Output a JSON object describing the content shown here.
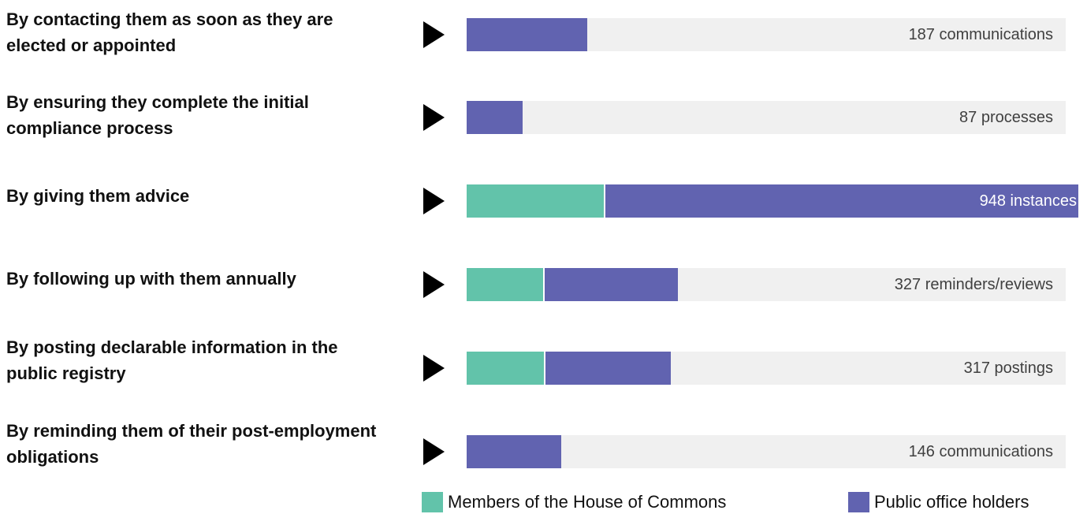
{
  "colors": {
    "members": "#62c3aa",
    "public_office_holders": "#6163b0",
    "track": "#f0f0f0",
    "arrow": "#000000"
  },
  "legend": {
    "members_label": "Members of the House of Commons",
    "public_office_holders_label": "Public office holders"
  },
  "chart_data": {
    "type": "bar",
    "orientation": "horizontal",
    "stacked": true,
    "grid": false,
    "legend_position": "bottom",
    "xlim": [
      0,
      948
    ],
    "categories": [
      "By contacting them as soon as they are elected or appointed",
      "By ensuring they complete the initial compliance process",
      "By giving them advice",
      "By following up with them annually",
      "By posting declarable information in the public registry",
      "By reminding them of their post-employment obligations"
    ],
    "totals": [
      187,
      87,
      948,
      327,
      317,
      146
    ],
    "total_labels": [
      "187 communications",
      "87 processes",
      "948 instances",
      "327 reminders/reviews",
      "317 postings",
      "146 communications"
    ],
    "series": [
      {
        "name": "Members of the House of Commons",
        "values": [
          0,
          0,
          213,
          119,
          120,
          0
        ]
      },
      {
        "name": "Public office holders",
        "values": [
          187,
          87,
          735,
          208,
          197,
          146
        ]
      }
    ]
  }
}
